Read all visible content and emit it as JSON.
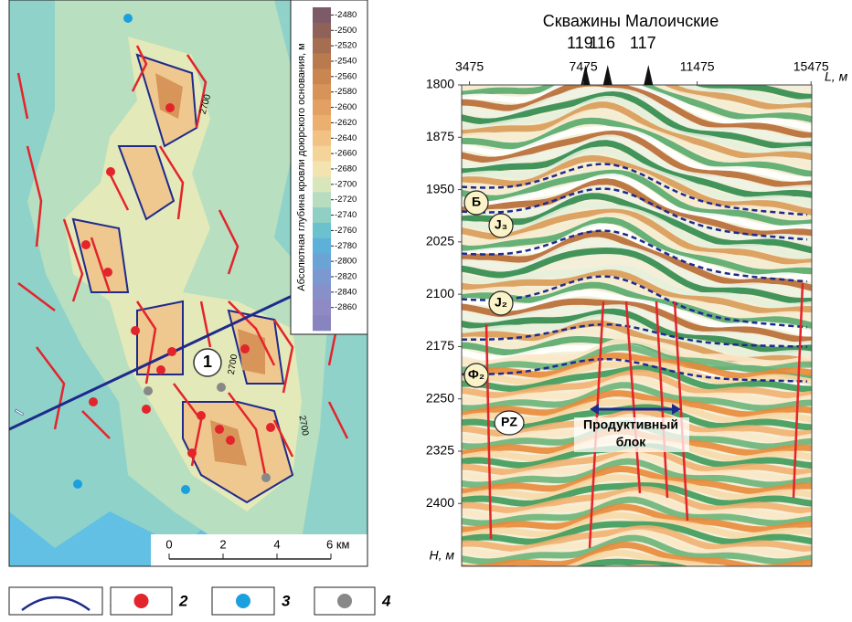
{
  "map": {
    "section_label": "I",
    "object_label": "1",
    "contour_labels": [
      "2700",
      "2700",
      "2700"
    ],
    "scale": {
      "ticks": [
        {
          "value": 0,
          "label": "0"
        },
        {
          "value": 2,
          "label": "2"
        },
        {
          "value": 4,
          "label": "4"
        },
        {
          "value": 6,
          "label": "6 км"
        }
      ]
    }
  },
  "colorbar": {
    "title": "Абсолютная глубина кровли доюрского основания, м",
    "ticks": [
      -2480,
      -2500,
      -2520,
      -2540,
      -2560,
      -2580,
      -2600,
      -2620,
      -2640,
      -2660,
      -2680,
      -2700,
      -2720,
      -2740,
      -2760,
      -2780,
      -2800,
      -2820,
      -2840,
      -2860
    ],
    "colors": [
      "#7d5a68",
      "#8e6258",
      "#a66e50",
      "#b97a4e",
      "#c98650",
      "#d89458",
      "#e3a063",
      "#ebb070",
      "#f1c283",
      "#f5d49a",
      "#f3e3b0",
      "#d9e6bc",
      "#b7dcc0",
      "#8fcfc4",
      "#6cc1cf",
      "#5db1d8",
      "#6ca3d6",
      "#7b98d0",
      "#8790c9",
      "#8f8ac4",
      "#8884c0"
    ]
  },
  "section": {
    "title": "Скважины Малоичские",
    "x_label": "L, м",
    "y_label": "H, м",
    "xlim": [
      3200,
      15500
    ],
    "xticks": [
      3475,
      7475,
      11475,
      15475
    ],
    "ylim": [
      1800,
      2490
    ],
    "yticks": [
      1800,
      1875,
      1950,
      2025,
      2100,
      2175,
      2250,
      2325,
      2400
    ],
    "wells": [
      {
        "name": "119",
        "x": 7550
      },
      {
        "name": "116",
        "x": 8330
      },
      {
        "name": "117",
        "x": 9760
      }
    ],
    "layers": [
      "Б",
      "J₃",
      "J₂",
      "Ф₂",
      "PZ"
    ],
    "block_label": [
      "Продуктивный",
      "блок"
    ]
  },
  "legend": [
    "1",
    "2",
    "3",
    "4"
  ]
}
